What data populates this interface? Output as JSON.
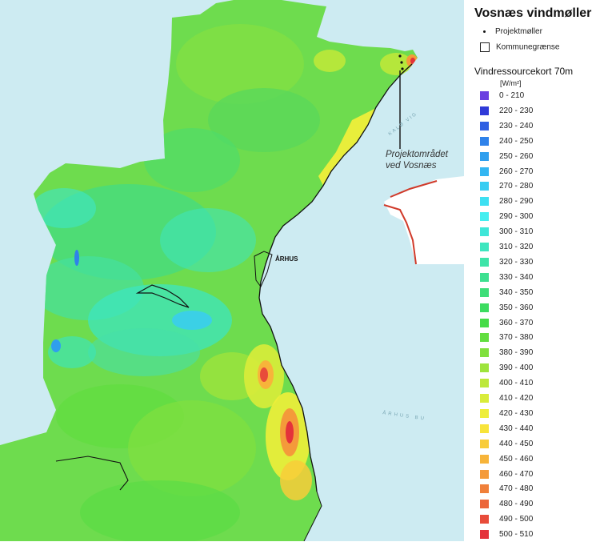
{
  "legend": {
    "title": "Vosnæs vindmøller",
    "project_turbines": "Projektmøller",
    "municipal_border": "Kommunegrænse",
    "scale_title": "Vindressourcekort 70m",
    "unit": "[W/m²]",
    "classes": [
      {
        "label": "0 - 210",
        "color": "#6a3fe0"
      },
      {
        "label": "220 - 230",
        "color": "#2f3ad8"
      },
      {
        "label": "230 - 240",
        "color": "#2f5fe2"
      },
      {
        "label": "240 - 250",
        "color": "#2f82ea"
      },
      {
        "label": "250 - 260",
        "color": "#2f9fee"
      },
      {
        "label": "260 - 270",
        "color": "#33b6f2"
      },
      {
        "label": "270 - 280",
        "color": "#38cdf2"
      },
      {
        "label": "280 - 290",
        "color": "#3ee0f2"
      },
      {
        "label": "290 - 300",
        "color": "#44eef0"
      },
      {
        "label": "300 - 310",
        "color": "#3fe6d8"
      },
      {
        "label": "310 - 320",
        "color": "#3ee6bf"
      },
      {
        "label": "320 - 330",
        "color": "#3ee4a8"
      },
      {
        "label": "330 - 340",
        "color": "#3ee090"
      },
      {
        "label": "340 - 350",
        "color": "#3ede78"
      },
      {
        "label": "350 - 360",
        "color": "#3ddc60"
      },
      {
        "label": "360 - 370",
        "color": "#46dc48"
      },
      {
        "label": "370 - 380",
        "color": "#62de40"
      },
      {
        "label": "380 - 390",
        "color": "#80e03e"
      },
      {
        "label": "390 - 400",
        "color": "#9ee43c"
      },
      {
        "label": "400 - 410",
        "color": "#bde83a"
      },
      {
        "label": "410 - 420",
        "color": "#d9ec3a"
      },
      {
        "label": "420 - 430",
        "color": "#eeee3a"
      },
      {
        "label": "430 - 440",
        "color": "#f8e43a"
      },
      {
        "label": "440 - 450",
        "color": "#f8cc3a"
      },
      {
        "label": "450 - 460",
        "color": "#f7b43a"
      },
      {
        "label": "460 - 470",
        "color": "#f49a3a"
      },
      {
        "label": "470 - 480",
        "color": "#f0803a"
      },
      {
        "label": "480 - 490",
        "color": "#ec663a"
      },
      {
        "label": "490 - 500",
        "color": "#e84c3a"
      },
      {
        "label": "500 - 510",
        "color": "#e4323a"
      }
    ]
  },
  "map": {
    "project_area_label_line1": "Projektområdet",
    "project_area_label_line2": "ved Vosnæs",
    "city_label": "ÅRHUS",
    "bay_label": "ÅRHUS BU",
    "coast_label": "KALØ VIG",
    "sea_color": "#cdebf2",
    "land_color": "#6edc4e"
  }
}
